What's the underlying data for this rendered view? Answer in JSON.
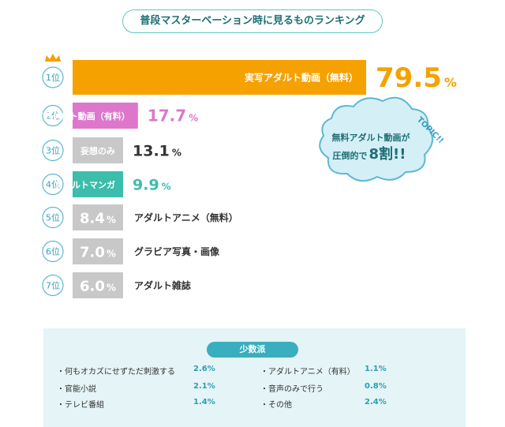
{
  "title": "普段マスターベーション時に見るものランキング",
  "chart_data": {
    "type": "bar",
    "orientation": "horizontal",
    "unit": "%",
    "xlim": [
      0,
      79.5
    ],
    "series": [
      {
        "rank": "1位",
        "label": "実写アダルト動画（無料）",
        "value": 79.5,
        "color": "#f5a100",
        "label_inside": true
      },
      {
        "rank": "2位",
        "label": "実写アダルト動画（有料）",
        "value": 17.7,
        "color": "#dd77cc",
        "label_inside": true
      },
      {
        "rank": "3位",
        "label": "妄想のみ",
        "value": 13.1,
        "color": "#c8c8c8",
        "label_inside": true
      },
      {
        "rank": "4位",
        "label": "アダルトマンガ",
        "value": 9.9,
        "color": "#3dbdab",
        "label_inside": true
      },
      {
        "rank": "5位",
        "label": "アダルトアニメ（無料）",
        "value": 8.4,
        "color": "#c8c8c8",
        "label_inside": false
      },
      {
        "rank": "6位",
        "label": "グラビア写真・画像",
        "value": 7.0,
        "color": "#c8c8c8",
        "label_inside": false
      },
      {
        "rank": "7位",
        "label": "アダルト雑誌",
        "value": 6.0,
        "color": "#c8c8c8",
        "label_inside": false
      }
    ]
  },
  "topic": {
    "tag": "TOPIC!!",
    "line1": "無料アダルト動画が",
    "line2_pre": "圧倒的で",
    "line2_big": "8割!!"
  },
  "minority": {
    "heading": "少数派",
    "items": [
      {
        "label": "・何もオカズにせずただ刺激する",
        "value": "2.6%"
      },
      {
        "label": "・官能小説",
        "value": "2.1%"
      },
      {
        "label": "・テレビ番組",
        "value": "1.4%"
      },
      {
        "label": "・アダルトアニメ（有料）",
        "value": "1.1%"
      },
      {
        "label": "・音声のみで行う",
        "value": "0.8%"
      },
      {
        "label": "・その他",
        "value": "2.4%"
      }
    ]
  }
}
